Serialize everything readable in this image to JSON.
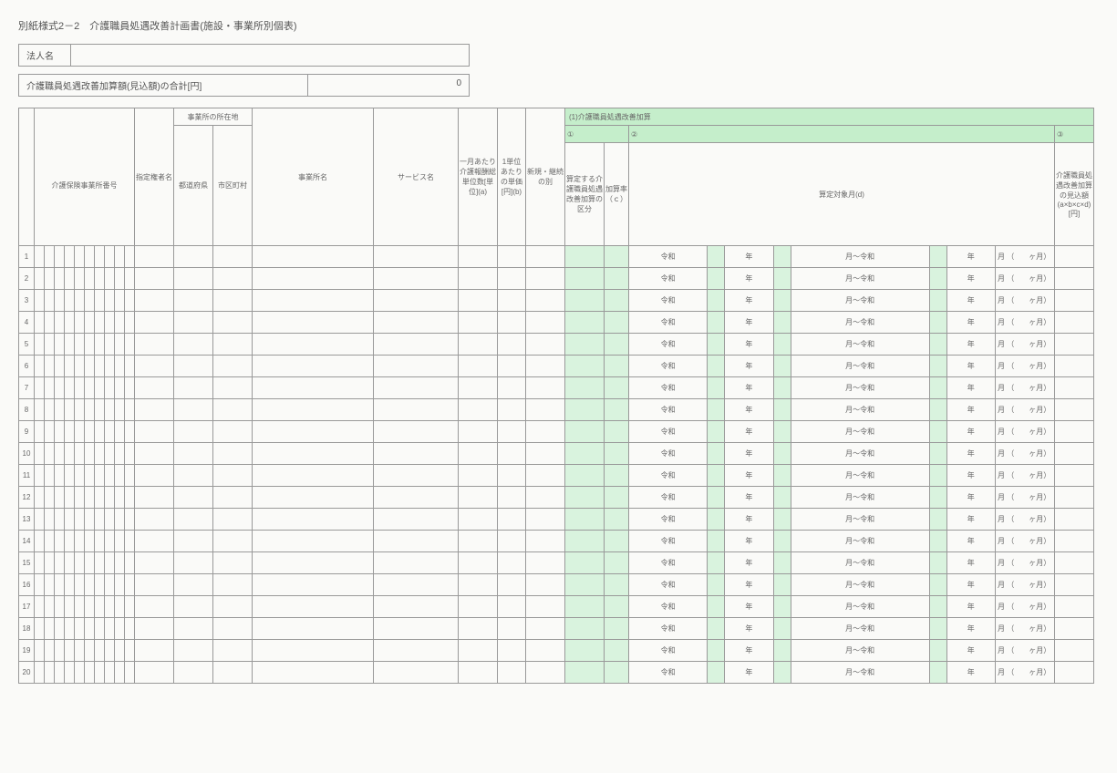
{
  "title": "別紙様式2－2　介護職員処遇改善計画書(施設・事業所別個表)",
  "corp": {
    "label": "法人名",
    "value": ""
  },
  "total": {
    "label": "介護職員処遇改善加算額(見込額)の合計[円]",
    "value": "0"
  },
  "headers": {
    "biz_no": "介護保険事業所番号",
    "authority": "指定権者名",
    "location": "事業所の所在地",
    "pref": "都道府県",
    "city": "市区町村",
    "biz_name": "事業所名",
    "service": "サービス名",
    "monthly": "一月あたり介護報酬総単位数[単位](a)",
    "unit_price": "1単位あたりの単価[円](b)",
    "new_cont": "新規・継続の別",
    "section": "(1)介護職員処遇改善加算",
    "c1": "①",
    "c2": "②",
    "c3": "③",
    "kubun": "算定する介護職員処遇改善加算の区分",
    "rate": "加算率（ｃ）",
    "target": "算定対象月(d)",
    "amount": "介護職員処遇改善加算の見込額\n(a×b×c×d)\n[円]"
  },
  "date": {
    "reiwa": "令和",
    "year": "年",
    "month_to": "月～令和",
    "month": "月",
    "open": "（",
    "close": "ヶ月）"
  },
  "row_count": 20,
  "digit_count": 10,
  "colors": {
    "green": "#c5eecb",
    "green_light": "#d9f3de",
    "border": "#999999",
    "bg": "#fafaf8"
  }
}
